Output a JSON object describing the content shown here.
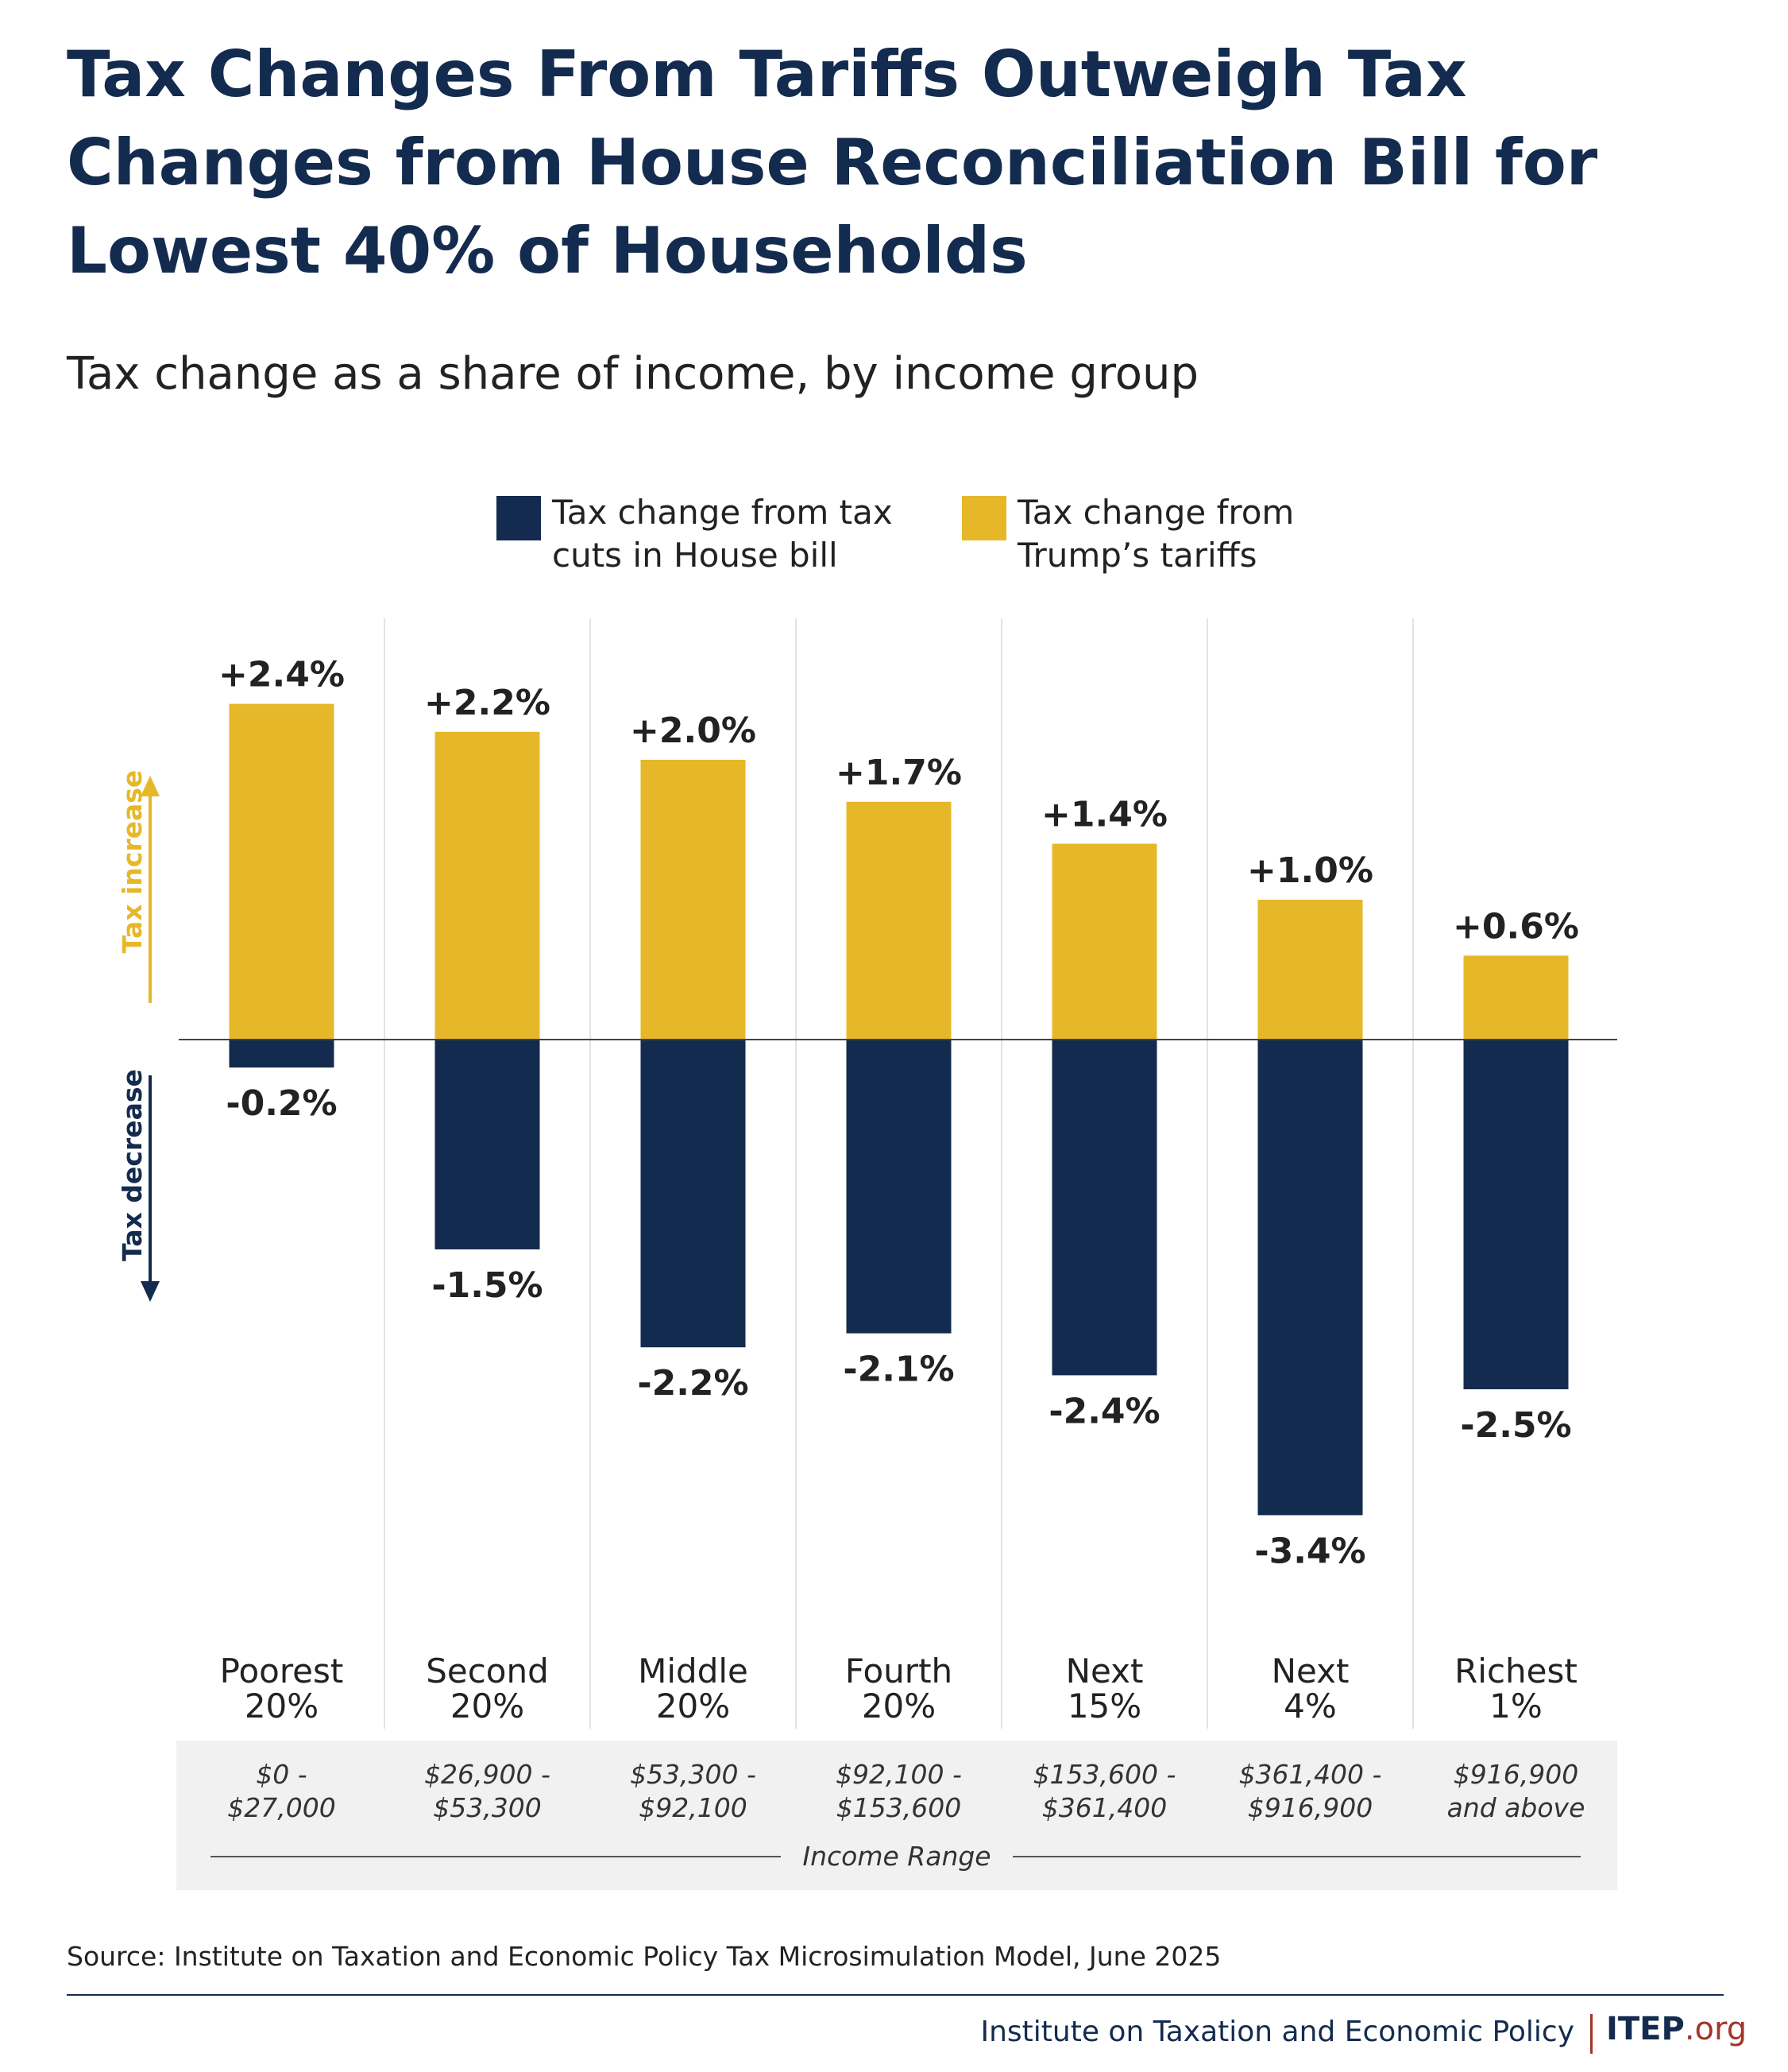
{
  "title": "Tax Changes From Tariffs Outweigh Tax Changes from House Reconciliation Bill for Lowest 40% of Households",
  "subtitle": "Tax change as a share of income, by income group",
  "colors": {
    "navy": "#132b4e",
    "gold": "#e6b829",
    "brand_red": "#a3342a",
    "panel": "#f1f1f1"
  },
  "chart_data": {
    "type": "bar",
    "categories": [
      "Poorest 20%",
      "Second 20%",
      "Middle 20%",
      "Fourth 20%",
      "Next 15%",
      "Next 4%",
      "Richest 1%"
    ],
    "income_ranges": [
      "$0 - $27,000",
      "$26,900 - $53,300",
      "$53,300 - $92,100",
      "$92,100 - $153,600",
      "$153,600 - $361,400",
      "$361,400 - $916,900",
      "$916,900 and above"
    ],
    "series": [
      {
        "name": "Tax change from tax cuts in House bill",
        "color": "#132b4e",
        "values": [
          -0.2,
          -1.5,
          -2.2,
          -2.1,
          -2.4,
          -3.4,
          -2.5
        ],
        "labels": [
          "-0.2%",
          "-1.5%",
          "-2.2%",
          "-2.1%",
          "-2.4%",
          "-3.4%",
          "-2.5%"
        ]
      },
      {
        "name": "Tax change from Trump's tariffs",
        "color": "#e6b829",
        "values": [
          2.4,
          2.2,
          2.0,
          1.7,
          1.4,
          1.0,
          0.6
        ],
        "labels": [
          "+2.4%",
          "+2.2%",
          "+2.0%",
          "+1.7%",
          "+1.4%",
          "+1.0%",
          "+0.6%"
        ]
      }
    ],
    "legend": [
      {
        "lines": [
          "Tax change from tax",
          "cuts in House bill"
        ],
        "color": "#132b4e"
      },
      {
        "lines": [
          "Tax change from",
          "Trump’s tariffs"
        ],
        "color": "#e6b829"
      }
    ],
    "category_lines": [
      [
        "Poorest",
        "20%"
      ],
      [
        "Second",
        "20%"
      ],
      [
        "Middle",
        "20%"
      ],
      [
        "Fourth",
        "20%"
      ],
      [
        "Next",
        "15%"
      ],
      [
        "Next",
        "4%"
      ],
      [
        "Richest",
        "1%"
      ]
    ],
    "range_lines": [
      [
        "$0 -",
        "$27,000"
      ],
      [
        "$26,900 -",
        "$53,300"
      ],
      [
        "$53,300 -",
        "$92,100"
      ],
      [
        "$92,100 -",
        "$153,600"
      ],
      [
        "$153,600 -",
        "$361,400"
      ],
      [
        "$361,400 -",
        "$916,900"
      ],
      [
        "$916,900",
        "and above"
      ]
    ],
    "range_axis_label": "Income Range",
    "side_labels": {
      "up": "Tax increase",
      "down": "Tax decrease"
    },
    "grid": true
  },
  "footer": {
    "source": "Source: Institute on Taxation and Economic Policy Tax Microsimulation Model, June 2025",
    "org": "Institute on Taxation and Economic Policy",
    "brand_main": "ITEP",
    "brand_sub": ".org"
  }
}
